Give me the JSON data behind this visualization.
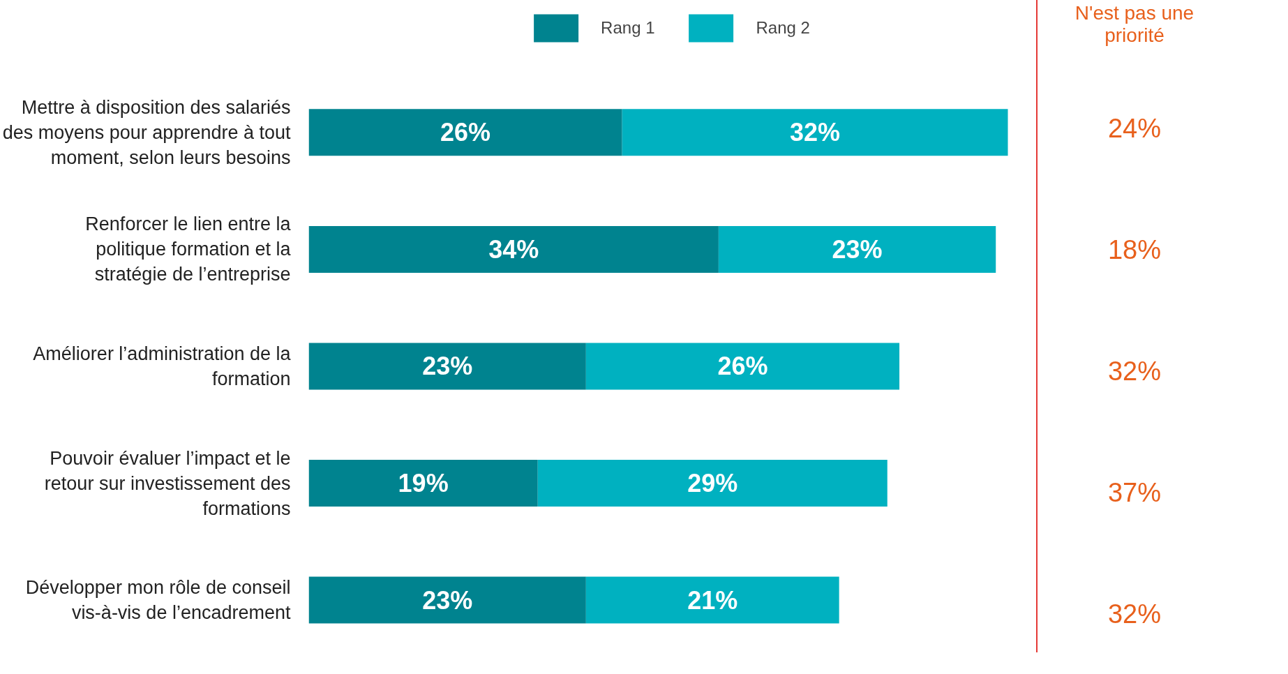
{
  "chart_data": {
    "type": "bar",
    "orientation": "horizontal",
    "stacked": true,
    "legend": "top",
    "grid": false,
    "categories": [
      "Mettre à disposition des salariés des moyens pour apprendre à tout moment, selon leurs besoins",
      "Renforcer le lien entre la politique formation et la stratégie de l’entreprise",
      "Améliorer l’administration de la formation",
      "Pouvoir évaluer l’impact et le retour sur investissement des formations",
      "Développer mon rôle de conseil vis-à-vis de l’encadrement"
    ],
    "series": [
      {
        "name": "Rang 1",
        "color": "#00838f",
        "values": [
          26,
          34,
          23,
          19,
          23
        ],
        "value_labels": [
          "26%",
          "34%",
          "23%",
          "19%",
          "23%"
        ]
      },
      {
        "name": "Rang 2",
        "color": "#00b1c0",
        "values": [
          32,
          23,
          26,
          29,
          21
        ],
        "value_labels": [
          "32%",
          "23%",
          "26%",
          "29%",
          "21%"
        ]
      }
    ],
    "annotations": [
      "N'est pas une priorité",
      "24%",
      "18%",
      "32%",
      "37%",
      "32%"
    ]
  }
}
